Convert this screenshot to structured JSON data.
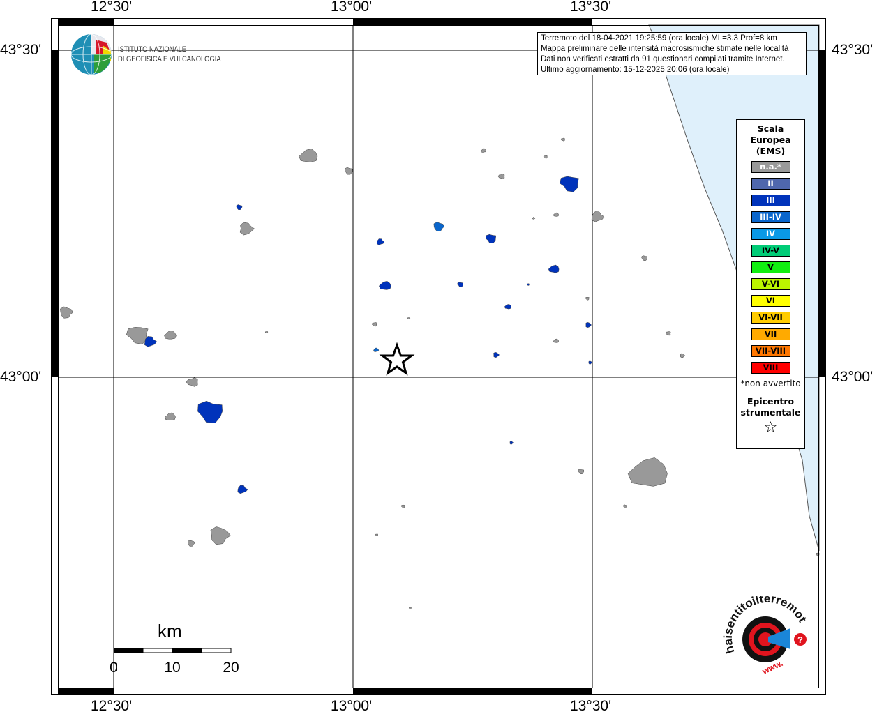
{
  "ticks": {
    "lon": [
      "12°30'",
      "13°00'",
      "13°30'"
    ],
    "lat": [
      "43°30'",
      "43°00'"
    ]
  },
  "info": {
    "line1": "Terremoto del 18-04-2021 19:25:59 (ora locale) ML=3.3 Prof=8 km",
    "line2": "Mappa preliminare delle intensità macrosismiche stimate nelle località",
    "line3": "Dati non verificati estratti da 91 questionari compilati tramite Internet.",
    "line4": "Ultimo aggiornamento: 15-12-2025 20:06 (ora locale)"
  },
  "legend": {
    "title1": "Scala",
    "title2": "Europea",
    "title3": "(EMS)",
    "classes": [
      {
        "label": "n.a.*",
        "color": "#999999",
        "text": "#ffffff"
      },
      {
        "label": "II",
        "color": "#4f67ad",
        "text": "#ffffff"
      },
      {
        "label": "III",
        "color": "#0033bb",
        "text": "#ffffff"
      },
      {
        "label": "III-IV",
        "color": "#0a66cc",
        "text": "#ffffff"
      },
      {
        "label": "IV",
        "color": "#0a99e6",
        "text": "#ffffff"
      },
      {
        "label": "IV-V",
        "color": "#00cc77",
        "text": "#000000"
      },
      {
        "label": "V",
        "color": "#11ee11",
        "text": "#000000"
      },
      {
        "label": "V-VI",
        "color": "#bbf500",
        "text": "#000000"
      },
      {
        "label": "VI",
        "color": "#ffff00",
        "text": "#000000"
      },
      {
        "label": "VI-VII",
        "color": "#ffcc00",
        "text": "#000000"
      },
      {
        "label": "VII",
        "color": "#ffaa00",
        "text": "#000000"
      },
      {
        "label": "VII-VIII",
        "color": "#ff7700",
        "text": "#000000"
      },
      {
        "label": "VIII",
        "color": "#ff0000",
        "text": "#000000"
      }
    ],
    "note": "*non avvertito",
    "epicenter1": "Epicentro",
    "epicenter2": "strumentale"
  },
  "scale_bar": {
    "unit": "km",
    "labels": [
      "0",
      "10",
      "20"
    ]
  },
  "logos": {
    "ingv": "ISTITUTO NAZIONALE DI GEOFISICA E VULCANOLOGIA",
    "hsit": "www.haisentitoilterremoto.it"
  },
  "colors": {
    "sea": "#dff0fb",
    "not_felt": "#999999",
    "III": "#0033bb",
    "III-IV": "#0a66cc"
  }
}
